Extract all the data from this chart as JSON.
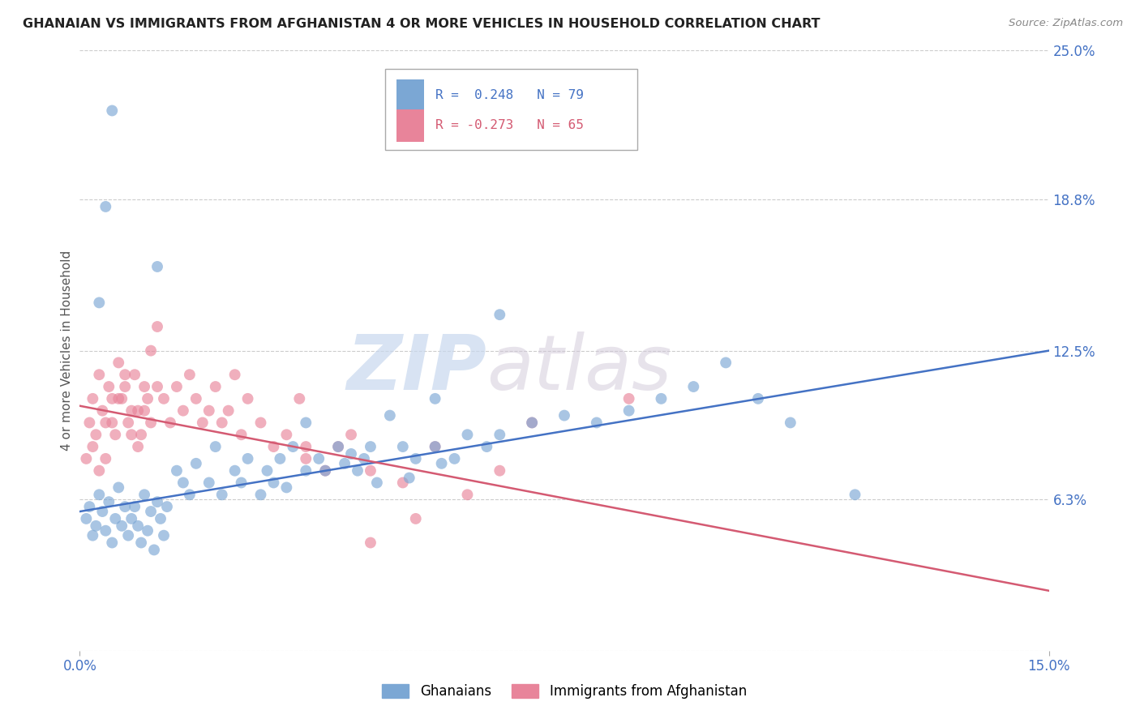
{
  "title": "GHANAIAN VS IMMIGRANTS FROM AFGHANISTAN 4 OR MORE VEHICLES IN HOUSEHOLD CORRELATION CHART",
  "source": "Source: ZipAtlas.com",
  "ylabel": "4 or more Vehicles in Household",
  "watermark_zip": "ZIP",
  "watermark_atlas": "atlas",
  "xmin": 0.0,
  "xmax": 15.0,
  "ymin": 0.0,
  "ymax": 25.0,
  "yticks": [
    0.0,
    6.3,
    12.5,
    18.8,
    25.0
  ],
  "ytick_labels": [
    "",
    "6.3%",
    "12.5%",
    "18.8%",
    "25.0%"
  ],
  "blue_R": 0.248,
  "blue_N": 79,
  "pink_R": -0.273,
  "pink_N": 65,
  "blue_color": "#7ba7d4",
  "pink_color": "#e8849a",
  "blue_line_color": "#4472c4",
  "pink_line_color": "#d45a72",
  "blue_label": "Ghanaians",
  "pink_label": "Immigrants from Afghanistan",
  "blue_scatter_x": [
    0.1,
    0.15,
    0.2,
    0.25,
    0.3,
    0.35,
    0.4,
    0.45,
    0.5,
    0.55,
    0.6,
    0.65,
    0.7,
    0.75,
    0.8,
    0.85,
    0.9,
    0.95,
    1.0,
    1.05,
    1.1,
    1.15,
    1.2,
    1.25,
    1.3,
    1.35,
    1.5,
    1.6,
    1.7,
    1.8,
    2.0,
    2.1,
    2.2,
    2.4,
    2.5,
    2.6,
    2.8,
    2.9,
    3.0,
    3.1,
    3.2,
    3.3,
    3.5,
    3.7,
    3.8,
    4.0,
    4.1,
    4.2,
    4.3,
    4.4,
    4.5,
    4.6,
    5.0,
    5.1,
    5.2,
    5.5,
    5.6,
    5.8,
    6.0,
    6.3,
    6.5,
    7.0,
    7.5,
    8.0,
    8.5,
    9.0,
    9.5,
    10.0,
    10.5,
    11.0,
    0.3,
    0.4,
    0.5,
    1.2,
    3.5,
    4.8,
    5.5,
    6.5,
    12.0
  ],
  "blue_scatter_y": [
    5.5,
    6.0,
    4.8,
    5.2,
    6.5,
    5.8,
    5.0,
    6.2,
    4.5,
    5.5,
    6.8,
    5.2,
    6.0,
    4.8,
    5.5,
    6.0,
    5.2,
    4.5,
    6.5,
    5.0,
    5.8,
    4.2,
    6.2,
    5.5,
    4.8,
    6.0,
    7.5,
    7.0,
    6.5,
    7.8,
    7.0,
    8.5,
    6.5,
    7.5,
    7.0,
    8.0,
    6.5,
    7.5,
    7.0,
    8.0,
    6.8,
    8.5,
    7.5,
    8.0,
    7.5,
    8.5,
    7.8,
    8.2,
    7.5,
    8.0,
    8.5,
    7.0,
    8.5,
    7.2,
    8.0,
    8.5,
    7.8,
    8.0,
    9.0,
    8.5,
    9.0,
    9.5,
    9.8,
    9.5,
    10.0,
    10.5,
    11.0,
    12.0,
    10.5,
    9.5,
    14.5,
    18.5,
    22.5,
    16.0,
    9.5,
    9.8,
    10.5,
    14.0,
    6.5
  ],
  "pink_scatter_x": [
    0.1,
    0.15,
    0.2,
    0.25,
    0.3,
    0.35,
    0.4,
    0.45,
    0.5,
    0.55,
    0.6,
    0.65,
    0.7,
    0.75,
    0.8,
    0.85,
    0.9,
    0.95,
    1.0,
    1.05,
    1.1,
    1.2,
    1.3,
    1.4,
    1.5,
    1.6,
    1.7,
    1.8,
    1.9,
    2.0,
    2.1,
    2.2,
    2.3,
    2.4,
    2.5,
    2.6,
    2.8,
    3.0,
    3.2,
    3.4,
    3.5,
    3.8,
    4.0,
    4.2,
    4.5,
    5.0,
    5.5,
    6.0,
    6.5,
    7.0,
    0.2,
    0.3,
    0.4,
    0.5,
    0.6,
    0.7,
    0.8,
    0.9,
    1.0,
    1.1,
    1.2,
    3.5,
    4.5,
    8.5,
    5.2
  ],
  "pink_scatter_y": [
    8.0,
    9.5,
    10.5,
    9.0,
    11.5,
    10.0,
    9.5,
    11.0,
    10.5,
    9.0,
    12.0,
    10.5,
    11.0,
    9.5,
    10.0,
    11.5,
    10.0,
    9.0,
    11.0,
    10.5,
    12.5,
    11.0,
    10.5,
    9.5,
    11.0,
    10.0,
    11.5,
    10.5,
    9.5,
    10.0,
    11.0,
    9.5,
    10.0,
    11.5,
    9.0,
    10.5,
    9.5,
    8.5,
    9.0,
    10.5,
    8.0,
    7.5,
    8.5,
    9.0,
    7.5,
    7.0,
    8.5,
    6.5,
    7.5,
    9.5,
    8.5,
    7.5,
    8.0,
    9.5,
    10.5,
    11.5,
    9.0,
    8.5,
    10.0,
    9.5,
    13.5,
    8.5,
    4.5,
    10.5,
    5.5
  ],
  "blue_trend_y_start": 5.8,
  "blue_trend_y_end": 12.5,
  "pink_trend_y_start": 10.2,
  "pink_trend_y_end": 2.5
}
